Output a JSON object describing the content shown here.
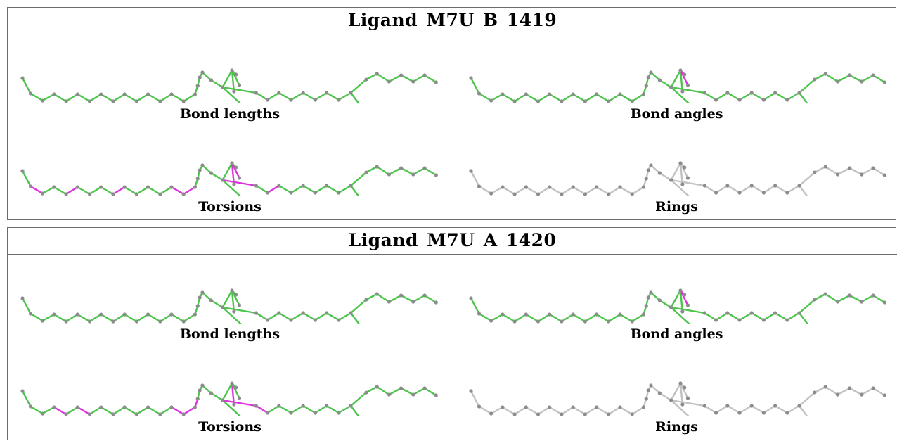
{
  "panels": [
    {
      "title": "Ligand M7U B 1419",
      "cells": [
        {
          "caption": "Bond lengths",
          "highlight": []
        },
        {
          "caption": "Bond angles",
          "highlight": [
            22,
            23
          ]
        },
        {
          "caption": "Torsions",
          "highlight": [
            1,
            4,
            8,
            13,
            14,
            21,
            23,
            25,
            27
          ]
        },
        {
          "caption": "Rings",
          "highlight": []
        }
      ]
    },
    {
      "title": "Ligand M7U A 1420",
      "cells": [
        {
          "caption": "Bond lengths",
          "highlight": []
        },
        {
          "caption": "Bond angles",
          "highlight": [
            22,
            23
          ]
        },
        {
          "caption": "Torsions",
          "highlight": [
            3,
            5,
            13,
            14,
            15,
            21,
            25,
            26
          ]
        },
        {
          "caption": "Rings",
          "highlight": []
        }
      ]
    }
  ],
  "colors": {
    "bond_ok": "#4ec44e",
    "bond_flag": "#dd33dd",
    "bond_plain": "#c2c2c2",
    "atom": "#8c8c8c",
    "border": "#6b6b6b"
  },
  "cell_styles": [
    "colored",
    "colored",
    "colored",
    "grey"
  ]
}
